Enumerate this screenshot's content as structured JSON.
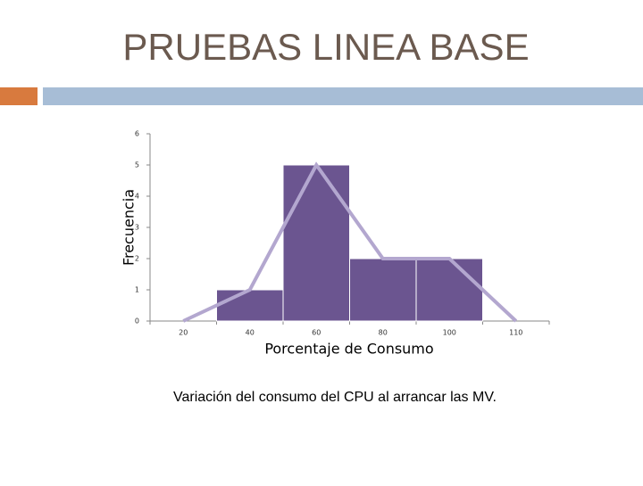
{
  "slide": {
    "title": "PRUEBAS LINEA BASE",
    "caption": "Variación del consumo del CPU al arrancar las MV."
  },
  "chart_data": {
    "type": "bar",
    "x_label": "Porcentaje de Consumo",
    "y_label": "Frecuencia",
    "categories": [
      "20",
      "40",
      "60",
      "80",
      "100",
      "110"
    ],
    "values": [
      0,
      1,
      5,
      2,
      2,
      0
    ],
    "color": "#6b5590",
    "line_color": "#b3a7cf",
    "ylim": [
      0,
      6
    ],
    "yticks": [
      0,
      1,
      2,
      3,
      4,
      5,
      6
    ],
    "grid": false
  }
}
